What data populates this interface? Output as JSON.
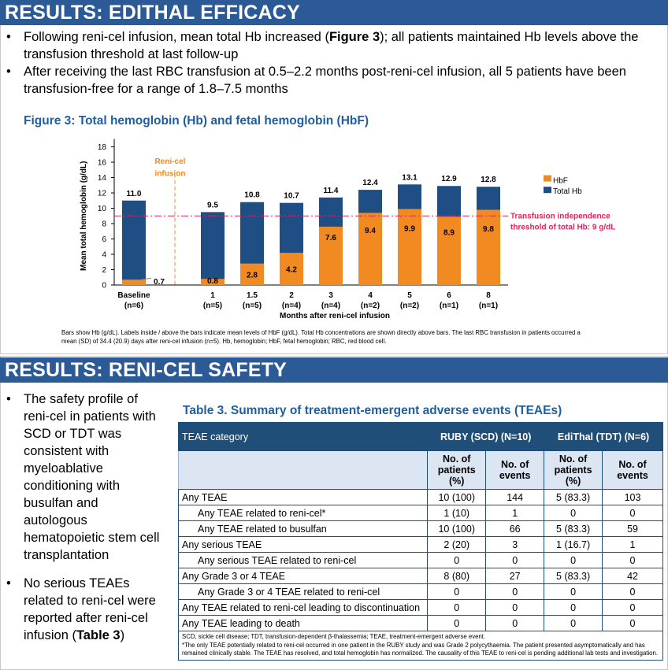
{
  "efficacy": {
    "header": "RESULTS: EDITHAL EFFICACY",
    "bullets": [
      {
        "pre": "Following reni-cel infusion, mean total Hb increased (",
        "bold": "Figure 3",
        "post": "); all patients maintained Hb levels above the transfusion threshold at last follow-up"
      },
      {
        "pre": "After receiving the last RBC transfusion at 0.5–2.2 months post-reni-cel infusion, all 5 patients have been transfusion-free for a range of 1.8–7.5 months",
        "bold": "",
        "post": ""
      }
    ]
  },
  "chart_data": {
    "type": "bar",
    "title": "Figure 3: Total hemoglobin (Hb) and fetal hemoglobin (HbF)",
    "xlabel": "Months after reni-cel infusion",
    "ylabel": "Mean total hemoglobin (g/dL)",
    "ylim": [
      0,
      18
    ],
    "yticks": [
      "0",
      "2",
      "4",
      "6",
      "8",
      "10",
      "12",
      "14",
      "16",
      "18"
    ],
    "categories": [
      "Baseline",
      "1",
      "1.5",
      "2",
      "3",
      "4",
      "5",
      "6",
      "8"
    ],
    "n_labels": [
      "(n=6)",
      "(n=5)",
      "(n=5)",
      "(n=4)",
      "(n=4)",
      "(n=2)",
      "(n=2)",
      "(n=1)",
      "(n=1)"
    ],
    "series": [
      {
        "name": "Total Hb",
        "color": "#1f4e85",
        "values": [
          11.0,
          9.5,
          10.8,
          10.7,
          11.4,
          12.4,
          13.1,
          12.9,
          12.8
        ],
        "labels": [
          "11.0",
          "9.5",
          "10.8",
          "10.7",
          "11.4",
          "12.4",
          "13.1",
          "12.9",
          "12.8"
        ]
      },
      {
        "name": "HbF",
        "color": "#f28a22",
        "values": [
          0.7,
          0.8,
          2.8,
          4.2,
          7.6,
          9.4,
          9.9,
          8.9,
          9.8
        ],
        "labels": [
          "0.7",
          "0.8",
          "2.8",
          "4.2",
          "7.6",
          "9.4",
          "9.9",
          "8.9",
          "9.8"
        ]
      }
    ],
    "infusion_label": [
      "Reni-cel",
      "infusion"
    ],
    "threshold": {
      "value": 9,
      "color": "#e0245e",
      "label": [
        "Transfusion independence",
        "threshold of total Hb: 9 g/dL"
      ]
    },
    "legend": "right",
    "caption": "Bars show Hb (g/dL). Labels inside / above the bars indicate mean levels of HbF (g/dL). Total Hb concentrations are shown directly above bars. The last RBC transfusion in patients occurred a mean (SD) of 34.4 (20.9) days after reni-cel infusion (n=5). Hb, hemoglobin; HbF, fetal hemoglobin; RBC, red blood cell."
  },
  "safety": {
    "header": "RESULTS: RENI-CEL SAFETY",
    "bullets": [
      {
        "pre": "The safety profile of reni-cel in patients with SCD or TDT was consistent with myeloablative conditioning with busulfan and autologous hematopoietic stem cell transplantation",
        "bold": "",
        "post": ""
      },
      {
        "pre": "No serious TEAEs related to reni-cel were reported after reni-cel infusion (",
        "bold": "Table 3",
        "post": ")"
      }
    ],
    "table": {
      "title": "Table 3. Summary of treatment-emergent adverse events (TEAEs)",
      "cat_header": "TEAE category",
      "group1": "RUBY (SCD) (N=10)",
      "group2": "EdiThal (TDT) (N=6)",
      "sub": [
        "No. of patients (%)",
        "No. of events",
        "No. of patients (%)",
        "No. of events"
      ],
      "rows": [
        {
          "label": "Any TEAE",
          "indent": false,
          "v": [
            "10 (100)",
            "144",
            "5 (83.3)",
            "103"
          ]
        },
        {
          "label": "Any TEAE related to reni-cel*",
          "indent": true,
          "v": [
            "1 (10)",
            "1",
            "0",
            "0"
          ]
        },
        {
          "label": "Any TEAE related to busulfan",
          "indent": true,
          "v": [
            "10 (100)",
            "66",
            "5 (83.3)",
            "59"
          ]
        },
        {
          "label": "Any serious TEAE",
          "indent": false,
          "v": [
            "2 (20)",
            "3",
            "1 (16.7)",
            "1"
          ]
        },
        {
          "label": "Any serious TEAE related to reni-cel",
          "indent": true,
          "v": [
            "0",
            "0",
            "0",
            "0"
          ]
        },
        {
          "label": "Any Grade 3 or 4 TEAE",
          "indent": false,
          "v": [
            "8 (80)",
            "27",
            "5 (83.3)",
            "42"
          ]
        },
        {
          "label": "Any Grade 3 or 4 TEAE related to reni-cel",
          "indent": true,
          "v": [
            "0",
            "0",
            "0",
            "0"
          ]
        },
        {
          "label": "Any TEAE related to reni-cel leading to discontinuation",
          "indent": false,
          "v": [
            "0",
            "0",
            "0",
            "0"
          ]
        },
        {
          "label": "Any TEAE leading to death",
          "indent": false,
          "v": [
            "0",
            "0",
            "0",
            "0"
          ]
        }
      ],
      "footnote1": "SCD, sickle cell disease; TDT, transfusion-dependent β-thalassemia; TEAE, treatment-emergent adverse event.",
      "footnote2": "*The only TEAE potentially related to reni-cel occurred in one patient in the RUBY study and was Grade 2 polycythaemia. The patient presented asymptomatically and has remained clinically stable. The TEAE has resolved, and total hemoglobin has normalized. The causality of this TEAE to reni-cel is pending additional lab tests and investigation."
    }
  }
}
